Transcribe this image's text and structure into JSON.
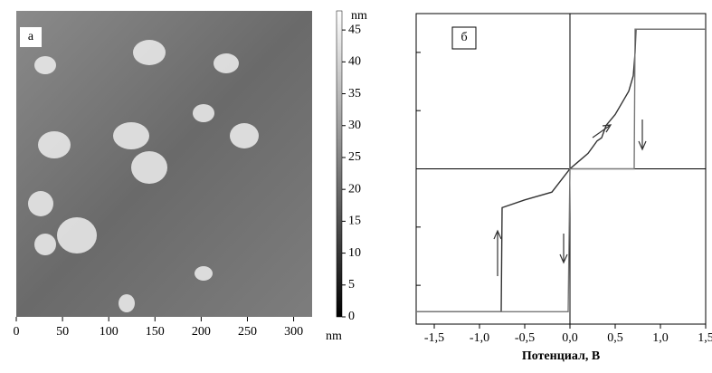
{
  "chart_data": [
    {
      "type": "image",
      "annotation": "а",
      "x_unit": "nm",
      "colorbar_label": "nm",
      "xlim": [
        0,
        320
      ],
      "xticks": [
        0,
        50,
        100,
        150,
        200,
        250,
        300
      ],
      "clim": [
        0,
        48
      ],
      "cticks": [
        0,
        5,
        10,
        15,
        20,
        25,
        30,
        35,
        40,
        45
      ]
    },
    {
      "type": "line",
      "annotation": "б",
      "xlabel": "Потенциал, В",
      "xlim": [
        -1.7,
        1.5
      ],
      "xticks": [
        {
          "value": -1.5,
          "label": "-1,5"
        },
        {
          "value": -1.0,
          "label": "-1,0"
        },
        {
          "value": -0.5,
          "label": "-0,5"
        },
        {
          "value": 0.0,
          "label": "0,0"
        },
        {
          "value": 0.5,
          "label": "0,5"
        },
        {
          "value": 1.0,
          "label": "1,0"
        },
        {
          "value": 1.5,
          "label": "1,5"
        }
      ],
      "ylim": [
        -1,
        1
      ],
      "yticks": [
        -0.75,
        -0.375,
        0.375,
        0.75
      ],
      "series": [
        {
          "color": "#333333",
          "x": [
            -1.7,
            -0.76,
            -0.75,
            -0.5,
            -0.2,
            0,
            0.1,
            0.2,
            0.3,
            0.35,
            0.4,
            0.5,
            0.6,
            0.65,
            0.7,
            0.72,
            0.73,
            1.5
          ],
          "values": [
            -0.92,
            -0.92,
            -0.25,
            -0.2,
            -0.15,
            0,
            0.05,
            0.1,
            0.18,
            0.2,
            0.28,
            0.35,
            0.45,
            0.5,
            0.6,
            0.75,
            0.9,
            0.9
          ]
        },
        {
          "color": "#777777",
          "x": [
            1.5,
            0.72,
            0.71,
            0.0,
            -0.02,
            -1.7
          ],
          "values": [
            0.9,
            0.9,
            0,
            0,
            -0.92,
            -0.92
          ]
        }
      ]
    }
  ]
}
